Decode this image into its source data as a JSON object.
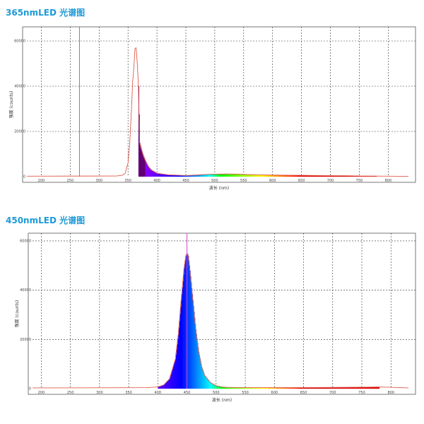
{
  "titles": {
    "chart1": "365nmLED 光谱图",
    "chart2": "450nmLED 光谱图"
  },
  "chart_data": [
    {
      "type": "line",
      "title": "365nmLED 光谱图",
      "xlabel": "波长 (nm)",
      "ylabel": "强度 (counts)",
      "xlim": [
        175,
        835
      ],
      "ylim": [
        0,
        65000
      ],
      "xticks": [
        200,
        250,
        300,
        350,
        400,
        450,
        500,
        550,
        600,
        650,
        700,
        750,
        800
      ],
      "yticks": [
        0,
        20000,
        40000,
        60000
      ],
      "grid": true,
      "marker_line_x": 266,
      "series": [
        {
          "x": [
            175,
            330,
            340,
            345,
            350,
            353,
            356,
            358,
            360,
            362,
            364,
            366,
            368,
            370,
            373,
            376,
            380,
            385,
            390,
            400,
            420,
            450,
            480,
            500,
            520,
            540,
            560,
            580,
            600,
            620,
            650,
            680,
            700,
            730,
            750,
            780,
            800,
            835
          ],
          "y": [
            200,
            300,
            600,
            1500,
            6000,
            15000,
            30000,
            42000,
            48000,
            56500,
            57000,
            50000,
            40000,
            15000,
            12000,
            9500,
            7000,
            4500,
            3000,
            1500,
            800,
            500,
            900,
            1100,
            1200,
            1100,
            900,
            800,
            700,
            650,
            600,
            500,
            450,
            400,
            300,
            250,
            200,
            150
          ]
        }
      ]
    },
    {
      "type": "line",
      "title": "450nmLED 光谱图",
      "xlabel": "波长 (nm)",
      "ylabel": "强度 (counts)",
      "xlim": [
        185,
        830
      ],
      "ylim": [
        0,
        62000
      ],
      "xticks": [
        200,
        250,
        300,
        350,
        400,
        450,
        500,
        550,
        600,
        650,
        700,
        750,
        800
      ],
      "yticks": [
        0,
        20000,
        40000,
        60000
      ],
      "grid": true,
      "marker_line_x": 450,
      "series": [
        {
          "x": [
            185,
            380,
            400,
            410,
            420,
            430,
            435,
            440,
            445,
            448,
            450,
            452,
            455,
            460,
            465,
            470,
            475,
            480,
            490,
            500,
            510,
            520,
            540,
            560,
            600,
            650,
            700,
            750,
            780,
            830
          ],
          "y": [
            300,
            400,
            700,
            1500,
            4000,
            12000,
            22000,
            36000,
            49000,
            54000,
            55000,
            54000,
            48000,
            36000,
            24000,
            15000,
            9000,
            5500,
            2500,
            1200,
            700,
            500,
            450,
            400,
            400,
            450,
            500,
            600,
            700,
            300
          ]
        }
      ]
    }
  ]
}
